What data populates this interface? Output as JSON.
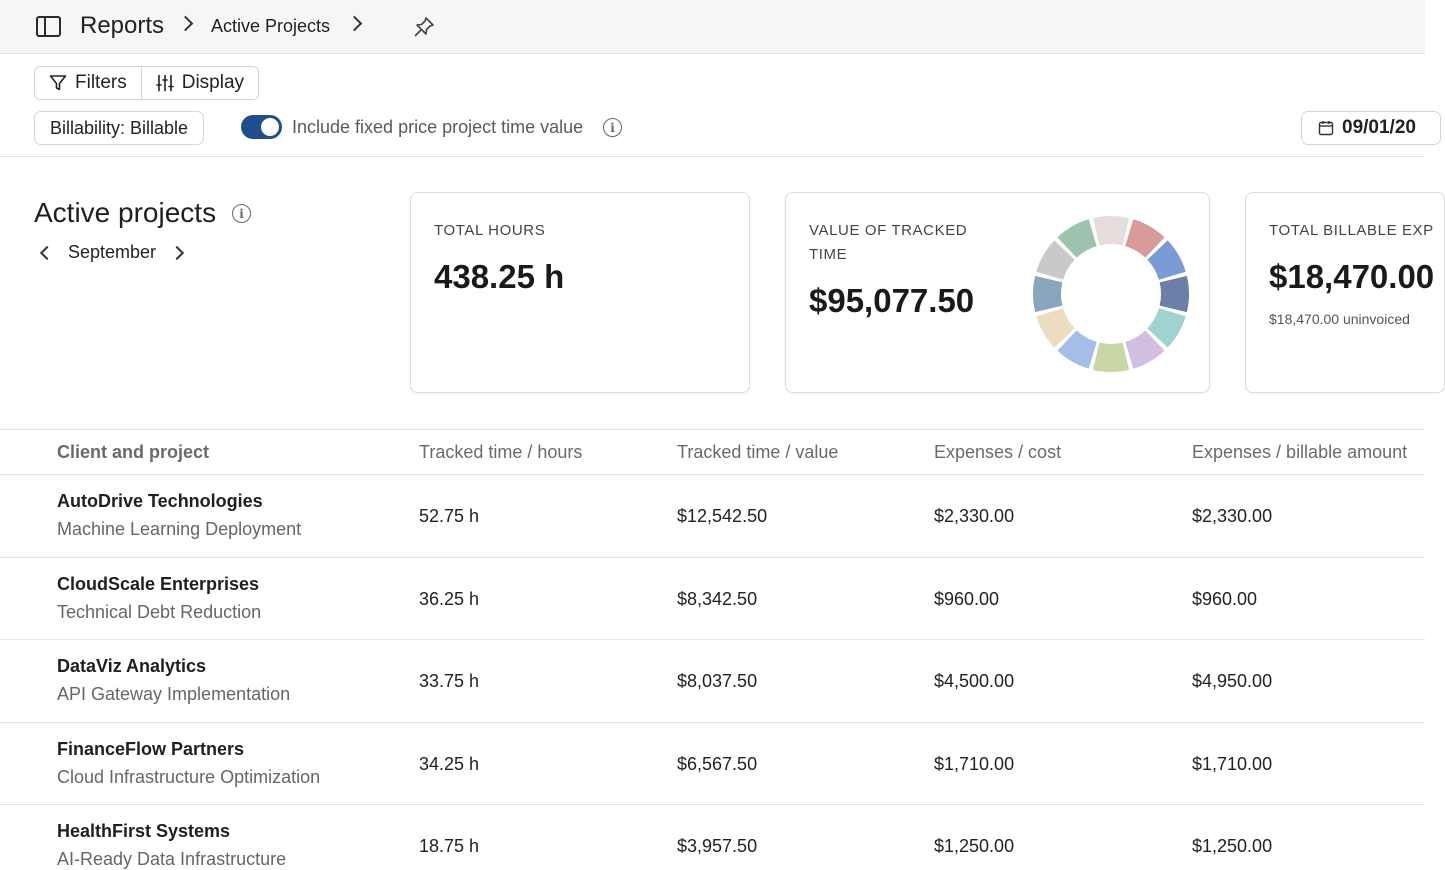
{
  "breadcrumb": {
    "root": "Reports",
    "current": "Active Projects"
  },
  "toolbar": {
    "filters_label": "Filters",
    "display_label": "Display",
    "billability_label": "Billability: Billable",
    "toggle_label": "Include fixed price project time value",
    "toggle_on": true,
    "date_label": "09/01/20"
  },
  "header": {
    "title": "Active projects",
    "month": "September"
  },
  "cards": {
    "total_hours": {
      "label": "TOTAL HOURS",
      "value": "438.25 h"
    },
    "tracked_value": {
      "label_line1": "VALUE OF TRACKED",
      "label_line2": "TIME",
      "value": "$95,077.50",
      "donut_colors": [
        "#e6dcdc",
        "#d99a9a",
        "#7b9bd6",
        "#6b7fa8",
        "#9fd3d0",
        "#d2bfe0",
        "#c9d6a6",
        "#a6bde8",
        "#ecdcc0",
        "#8aa6bd",
        "#c9c9c9",
        "#9cc4ac"
      ]
    },
    "billable_expenses": {
      "label": "TOTAL BILLABLE EXP",
      "value": "$18,470.00",
      "sub": "$18,470.00 uninvoiced"
    }
  },
  "table": {
    "columns": [
      "Client and project",
      "Tracked time / hours",
      "Tracked time / value",
      "Expenses / cost",
      "Expenses / billable amount"
    ],
    "rows": [
      {
        "client": "AutoDrive Technologies",
        "project": "Machine Learning Deployment",
        "hours": "52.75 h",
        "value": "$12,542.50",
        "cost": "$2,330.00",
        "billable": "$2,330.00"
      },
      {
        "client": "CloudScale Enterprises",
        "project": "Technical Debt Reduction",
        "hours": "36.25 h",
        "value": "$8,342.50",
        "cost": "$960.00",
        "billable": "$960.00"
      },
      {
        "client": "DataViz Analytics",
        "project": "API Gateway Implementation",
        "hours": "33.75 h",
        "value": "$8,037.50",
        "cost": "$4,500.00",
        "billable": "$4,950.00"
      },
      {
        "client": "FinanceFlow Partners",
        "project": "Cloud Infrastructure Optimization",
        "hours": "34.25 h",
        "value": "$6,567.50",
        "cost": "$1,710.00",
        "billable": "$1,710.00"
      },
      {
        "client": "HealthFirst Systems",
        "project": "AI-Ready Data Infrastructure",
        "hours": "18.75 h",
        "value": "$3,957.50",
        "cost": "$1,250.00",
        "billable": "$1,250.00"
      }
    ]
  }
}
